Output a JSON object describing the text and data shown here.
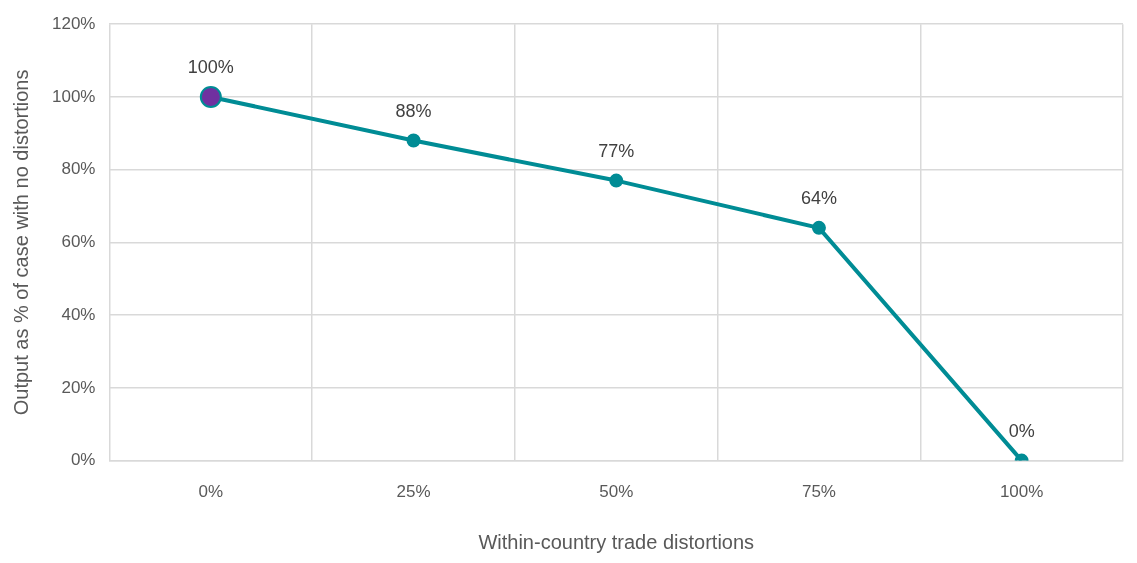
{
  "chart_data": {
    "type": "line",
    "xlabel": "Within-country trade distortions",
    "ylabel": "Output as % of case with no distortions",
    "categories": [
      "0%",
      "25%",
      "50%",
      "75%",
      "100%"
    ],
    "series": [
      {
        "color": "#008c95",
        "colors": [
          "#7030a0",
          "#008c95",
          "#008c95",
          "#008c95",
          "#008c95"
        ],
        "values": [
          100,
          88,
          77,
          64,
          0
        ],
        "value_labels": [
          "100%",
          "88%",
          "77%",
          "64%",
          "0%"
        ]
      }
    ],
    "ylim": [
      0,
      120
    ],
    "yticks": [
      {
        "value": 0,
        "label": "0%"
      },
      {
        "value": 20,
        "label": "20%"
      },
      {
        "value": 40,
        "label": "40%"
      },
      {
        "value": 60,
        "label": "60%"
      },
      {
        "value": 80,
        "label": "80%"
      },
      {
        "value": 100,
        "label": "100%"
      },
      {
        "value": 120,
        "label": "120%"
      }
    ],
    "grid": true,
    "legend": false,
    "marker": "circle",
    "line_style": "solid"
  }
}
